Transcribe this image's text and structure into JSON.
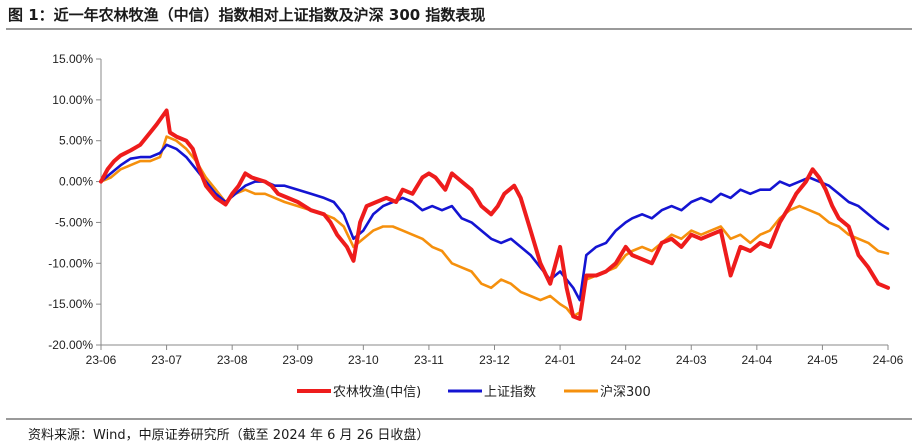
{
  "header": {
    "title": "图 1：近一年农林牧渔（中信）指数相对上证指数及沪深 300 指数表现"
  },
  "footer": {
    "source": "资料来源：Wind，中原证券研究所（截至 2024 年 6 月 26 日收盘）"
  },
  "chart_data": {
    "type": "line",
    "title": "图 1：近一年农林牧渔（中信）指数相对上证指数及沪深 300 指数表现",
    "xlabel": "",
    "ylabel": "",
    "x": [
      "23-06",
      "23-07",
      "23-08",
      "23-09",
      "23-10",
      "23-11",
      "23-12",
      "24-01",
      "24-02",
      "24-03",
      "24-04",
      "24-05",
      "24-06"
    ],
    "y_ticks": [
      "15.00%",
      "10.00%",
      "5.00%",
      "0.00%",
      "-5.00%",
      "-10.00%",
      "-15.00%",
      "-20.00%"
    ],
    "ylim": [
      -20,
      15
    ],
    "grid": false,
    "legend": "bottom",
    "series": [
      {
        "name": "农林牧渔(中信)",
        "color": "#ee1c1c",
        "points": [
          [
            0,
            0
          ],
          [
            0.1,
            1.5
          ],
          [
            0.2,
            2.5
          ],
          [
            0.3,
            3.2
          ],
          [
            0.45,
            3.8
          ],
          [
            0.6,
            4.5
          ],
          [
            0.75,
            6
          ],
          [
            0.85,
            7
          ],
          [
            1.0,
            8.7
          ],
          [
            1.05,
            6
          ],
          [
            1.15,
            5.5
          ],
          [
            1.3,
            5
          ],
          [
            1.4,
            4
          ],
          [
            1.5,
            1.5
          ],
          [
            1.6,
            -0.5
          ],
          [
            1.75,
            -2
          ],
          [
            1.9,
            -2.8
          ],
          [
            2.0,
            -1.5
          ],
          [
            2.1,
            -0.5
          ],
          [
            2.2,
            1
          ],
          [
            2.3,
            0.5
          ],
          [
            2.5,
            0
          ],
          [
            2.6,
            -0.5
          ],
          [
            2.7,
            -1.5
          ],
          [
            2.85,
            -2
          ],
          [
            3.0,
            -2.5
          ],
          [
            3.1,
            -3
          ],
          [
            3.2,
            -3.5
          ],
          [
            3.4,
            -4
          ],
          [
            3.5,
            -5
          ],
          [
            3.6,
            -6.5
          ],
          [
            3.75,
            -8
          ],
          [
            3.85,
            -9.7
          ],
          [
            3.95,
            -5
          ],
          [
            4.05,
            -3
          ],
          [
            4.2,
            -2.5
          ],
          [
            4.35,
            -2
          ],
          [
            4.5,
            -2.5
          ],
          [
            4.6,
            -1
          ],
          [
            4.75,
            -1.5
          ],
          [
            4.9,
            0.5
          ],
          [
            5.0,
            1
          ],
          [
            5.1,
            0.5
          ],
          [
            5.25,
            -1
          ],
          [
            5.35,
            1
          ],
          [
            5.5,
            0
          ],
          [
            5.65,
            -1
          ],
          [
            5.8,
            -3
          ],
          [
            5.95,
            -4
          ],
          [
            6.05,
            -3
          ],
          [
            6.15,
            -1.5
          ],
          [
            6.3,
            -0.5
          ],
          [
            6.4,
            -2
          ],
          [
            6.55,
            -6
          ],
          [
            6.7,
            -10
          ],
          [
            6.85,
            -12.5
          ],
          [
            7.0,
            -8
          ],
          [
            7.1,
            -13
          ],
          [
            7.2,
            -16.5
          ],
          [
            7.3,
            -16.8
          ],
          [
            7.4,
            -11.5
          ],
          [
            7.55,
            -11.5
          ],
          [
            7.7,
            -11
          ],
          [
            7.85,
            -10
          ],
          [
            8.0,
            -8
          ],
          [
            8.1,
            -9
          ],
          [
            8.25,
            -9.5
          ],
          [
            8.4,
            -10
          ],
          [
            8.55,
            -7.5
          ],
          [
            8.7,
            -7
          ],
          [
            8.85,
            -8
          ],
          [
            9.0,
            -6.5
          ],
          [
            9.15,
            -7
          ],
          [
            9.3,
            -6.5
          ],
          [
            9.45,
            -6
          ],
          [
            9.6,
            -11.5
          ],
          [
            9.75,
            -8
          ],
          [
            9.9,
            -8.5
          ],
          [
            10.05,
            -7.5
          ],
          [
            10.2,
            -8
          ],
          [
            10.35,
            -5
          ],
          [
            10.5,
            -3
          ],
          [
            10.6,
            -1.5
          ],
          [
            10.75,
            0
          ],
          [
            10.85,
            1.5
          ],
          [
            10.95,
            0.5
          ],
          [
            11.05,
            -1
          ],
          [
            11.15,
            -3
          ],
          [
            11.25,
            -4.5
          ],
          [
            11.4,
            -5.5
          ],
          [
            11.55,
            -9
          ],
          [
            11.7,
            -10.5
          ],
          [
            11.85,
            -12.5
          ],
          [
            12.0,
            -13
          ]
        ]
      },
      {
        "name": "上证指数",
        "color": "#1414d2",
        "points": [
          [
            0,
            0
          ],
          [
            0.15,
            1
          ],
          [
            0.3,
            2
          ],
          [
            0.45,
            2.8
          ],
          [
            0.6,
            3
          ],
          [
            0.75,
            3
          ],
          [
            0.9,
            3.5
          ],
          [
            1.0,
            4.5
          ],
          [
            1.15,
            4
          ],
          [
            1.3,
            3
          ],
          [
            1.45,
            1.5
          ],
          [
            1.6,
            0
          ],
          [
            1.75,
            -1.5
          ],
          [
            1.9,
            -2.5
          ],
          [
            2.05,
            -1.5
          ],
          [
            2.2,
            -0.5
          ],
          [
            2.35,
            0
          ],
          [
            2.5,
            0
          ],
          [
            2.65,
            -0.5
          ],
          [
            2.8,
            -0.5
          ],
          [
            3.0,
            -1
          ],
          [
            3.2,
            -1.5
          ],
          [
            3.4,
            -2
          ],
          [
            3.55,
            -2.5
          ],
          [
            3.7,
            -4
          ],
          [
            3.85,
            -7
          ],
          [
            4.0,
            -6
          ],
          [
            4.15,
            -4
          ],
          [
            4.3,
            -3
          ],
          [
            4.45,
            -2.5
          ],
          [
            4.6,
            -2
          ],
          [
            4.75,
            -2.5
          ],
          [
            4.9,
            -3.5
          ],
          [
            5.05,
            -3
          ],
          [
            5.2,
            -3.5
          ],
          [
            5.35,
            -3
          ],
          [
            5.5,
            -4.5
          ],
          [
            5.65,
            -5
          ],
          [
            5.8,
            -6
          ],
          [
            5.95,
            -7
          ],
          [
            6.1,
            -7.5
          ],
          [
            6.25,
            -7
          ],
          [
            6.4,
            -8
          ],
          [
            6.55,
            -9
          ],
          [
            6.7,
            -10.5
          ],
          [
            6.85,
            -12
          ],
          [
            7.0,
            -11
          ],
          [
            7.1,
            -12
          ],
          [
            7.2,
            -13
          ],
          [
            7.3,
            -14.5
          ],
          [
            7.4,
            -9
          ],
          [
            7.55,
            -8
          ],
          [
            7.7,
            -7.5
          ],
          [
            7.85,
            -6
          ],
          [
            8.0,
            -5
          ],
          [
            8.1,
            -4.5
          ],
          [
            8.25,
            -4
          ],
          [
            8.4,
            -4.5
          ],
          [
            8.55,
            -3.5
          ],
          [
            8.7,
            -3
          ],
          [
            8.85,
            -3.5
          ],
          [
            9.0,
            -2.5
          ],
          [
            9.15,
            -2
          ],
          [
            9.3,
            -2.5
          ],
          [
            9.45,
            -1.5
          ],
          [
            9.6,
            -2
          ],
          [
            9.75,
            -1
          ],
          [
            9.9,
            -1.5
          ],
          [
            10.05,
            -1
          ],
          [
            10.2,
            -1
          ],
          [
            10.35,
            0
          ],
          [
            10.5,
            -0.5
          ],
          [
            10.65,
            0
          ],
          [
            10.8,
            0.5
          ],
          [
            10.95,
            0
          ],
          [
            11.1,
            -0.5
          ],
          [
            11.25,
            -1.5
          ],
          [
            11.4,
            -2.5
          ],
          [
            11.55,
            -3
          ],
          [
            11.7,
            -4
          ],
          [
            11.85,
            -5
          ],
          [
            12.0,
            -5.8
          ]
        ]
      },
      {
        "name": "沪深300",
        "color": "#f5900d",
        "points": [
          [
            0,
            0
          ],
          [
            0.15,
            0.5
          ],
          [
            0.3,
            1.5
          ],
          [
            0.45,
            2
          ],
          [
            0.6,
            2.5
          ],
          [
            0.75,
            2.5
          ],
          [
            0.9,
            3
          ],
          [
            1.0,
            5.5
          ],
          [
            1.15,
            5
          ],
          [
            1.3,
            4
          ],
          [
            1.45,
            2.5
          ],
          [
            1.6,
            0.5
          ],
          [
            1.75,
            -1
          ],
          [
            1.9,
            -2.5
          ],
          [
            2.05,
            -1.5
          ],
          [
            2.2,
            -1
          ],
          [
            2.35,
            -1.5
          ],
          [
            2.5,
            -1.5
          ],
          [
            2.65,
            -2
          ],
          [
            2.8,
            -2.5
          ],
          [
            3.0,
            -3
          ],
          [
            3.2,
            -3.5
          ],
          [
            3.4,
            -4
          ],
          [
            3.55,
            -4.5
          ],
          [
            3.7,
            -5.5
          ],
          [
            3.85,
            -8
          ],
          [
            4.0,
            -7
          ],
          [
            4.15,
            -6
          ],
          [
            4.3,
            -5.5
          ],
          [
            4.45,
            -5.5
          ],
          [
            4.6,
            -6
          ],
          [
            4.75,
            -6.5
          ],
          [
            4.9,
            -7
          ],
          [
            5.05,
            -8
          ],
          [
            5.2,
            -8.5
          ],
          [
            5.35,
            -10
          ],
          [
            5.5,
            -10.5
          ],
          [
            5.65,
            -11
          ],
          [
            5.8,
            -12.5
          ],
          [
            5.95,
            -13
          ],
          [
            6.1,
            -12
          ],
          [
            6.25,
            -12.5
          ],
          [
            6.4,
            -13.5
          ],
          [
            6.55,
            -14
          ],
          [
            6.7,
            -14.5
          ],
          [
            6.85,
            -14
          ],
          [
            7.0,
            -15
          ],
          [
            7.1,
            -15.5
          ],
          [
            7.2,
            -16.5
          ],
          [
            7.3,
            -16
          ],
          [
            7.4,
            -12
          ],
          [
            7.55,
            -11.5
          ],
          [
            7.7,
            -11
          ],
          [
            7.85,
            -10.5
          ],
          [
            8.0,
            -9
          ],
          [
            8.1,
            -8.5
          ],
          [
            8.25,
            -8
          ],
          [
            8.4,
            -8.5
          ],
          [
            8.55,
            -7.5
          ],
          [
            8.7,
            -6.5
          ],
          [
            8.85,
            -7
          ],
          [
            9.0,
            -6
          ],
          [
            9.15,
            -6.5
          ],
          [
            9.3,
            -6
          ],
          [
            9.45,
            -5.5
          ],
          [
            9.6,
            -7
          ],
          [
            9.75,
            -6.5
          ],
          [
            9.9,
            -7.5
          ],
          [
            10.05,
            -6.5
          ],
          [
            10.2,
            -6
          ],
          [
            10.35,
            -4.5
          ],
          [
            10.5,
            -3.5
          ],
          [
            10.65,
            -3
          ],
          [
            10.8,
            -3.5
          ],
          [
            10.95,
            -4
          ],
          [
            11.1,
            -5
          ],
          [
            11.25,
            -5.5
          ],
          [
            11.4,
            -6.5
          ],
          [
            11.55,
            -7
          ],
          [
            11.7,
            -7.5
          ],
          [
            11.85,
            -8.5
          ],
          [
            12.0,
            -8.8
          ]
        ]
      }
    ]
  }
}
